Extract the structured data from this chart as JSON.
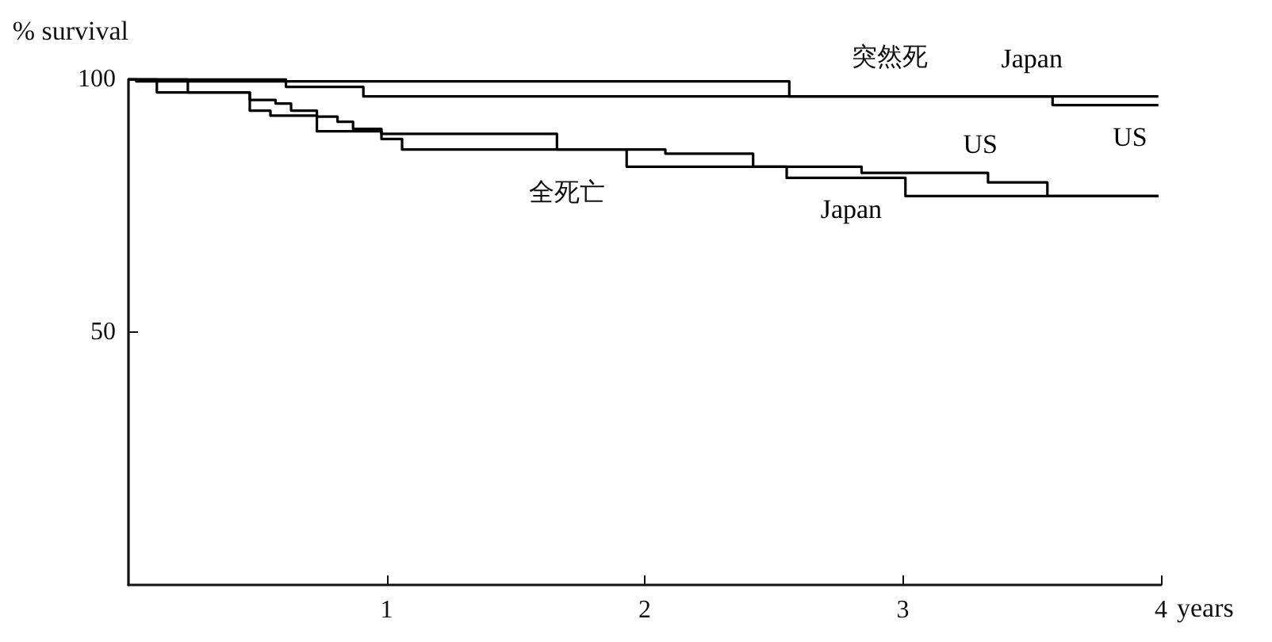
{
  "chart_data": {
    "type": "step",
    "xlabel": "years",
    "ylabel": "% survival",
    "annotations": [
      "突然死",
      "全死亡"
    ],
    "xlim": [
      0,
      4
    ],
    "xticks": [
      1,
      2,
      3,
      4
    ],
    "ylim": [
      0,
      100
    ],
    "yticks": [
      50,
      100
    ],
    "grid": false,
    "marker": "none",
    "line_style": "solid",
    "series": [
      {
        "name": "Japan",
        "color": "#000000",
        "x": [
          0,
          0.03,
          2.56,
          3.99
        ],
        "values": [
          100,
          99.6,
          96.6,
          96.6
        ]
      },
      {
        "name": "US",
        "color": "#000000",
        "x": [
          0,
          0.61,
          0.91,
          3.58,
          3.99
        ],
        "values": [
          100,
          98.5,
          96.6,
          94.9,
          94.9
        ]
      },
      {
        "name": "US",
        "color": "#000000",
        "x": [
          0,
          0.23,
          0.47,
          0.57,
          0.63,
          0.73,
          0.81,
          0.87,
          0.98,
          1.66,
          2.08,
          2.42,
          2.84,
          3.33,
          3.56,
          3.99
        ],
        "values": [
          100,
          97.4,
          95.9,
          95.2,
          93.8,
          92.6,
          91.6,
          90.2,
          89.2,
          86.1,
          85.3,
          82.7,
          81.5,
          79.6,
          76.9,
          76.9
        ]
      },
      {
        "name": "Japan",
        "color": "#000000",
        "x": [
          0,
          0.11,
          0.47,
          0.55,
          0.73,
          0.98,
          1.06,
          1.93,
          2.55,
          3.01,
          3.99
        ],
        "values": [
          100,
          97.4,
          93.8,
          92.8,
          89.7,
          88.2,
          86.1,
          82.7,
          80.5,
          76.9,
          76.9
        ]
      }
    ]
  }
}
